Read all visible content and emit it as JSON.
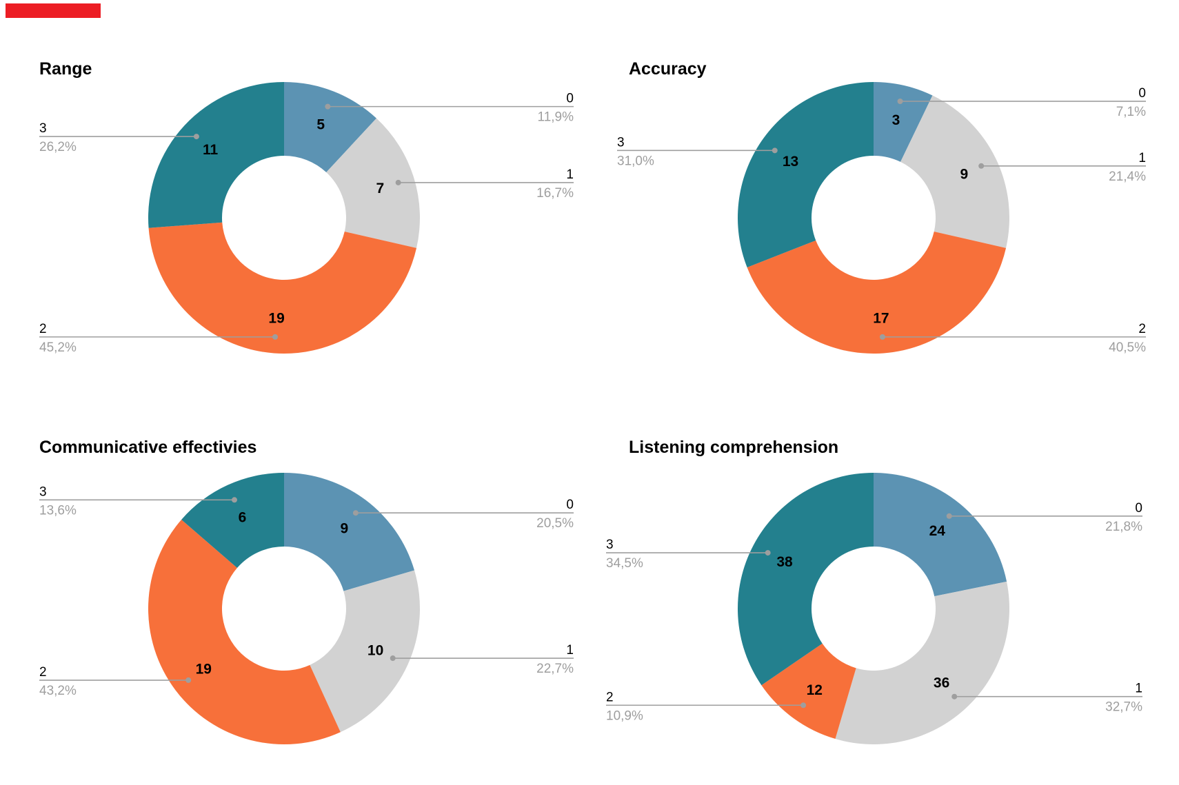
{
  "page": {
    "background": "#ffffff",
    "red_marker_color": "#ec1d24"
  },
  "palette": {
    "slice_colors": [
      "#5C93B3",
      "#D2D2D2",
      "#F7703A",
      "#23808E"
    ],
    "leader_color": "#9E9E9E",
    "percent_text_color": "#9E9E9E",
    "value_text_color": "#000000",
    "category_text_color": "#000000",
    "title_color": "#000000"
  },
  "chart_data": [
    {
      "type": "pie",
      "subtype": "donut",
      "title": "Range",
      "categories": [
        "0",
        "1",
        "2",
        "3"
      ],
      "values": [
        5,
        7,
        19,
        11
      ],
      "percent_labels": [
        "11,9%",
        "16,7%",
        "45,2%",
        "26,2%"
      ],
      "legend_position": "callout-labels",
      "start_angle_deg": 0,
      "direction": "clockwise"
    },
    {
      "type": "pie",
      "subtype": "donut",
      "title": "Accuracy",
      "categories": [
        "0",
        "1",
        "2",
        "3"
      ],
      "values": [
        3,
        9,
        17,
        13
      ],
      "percent_labels": [
        "7,1%",
        "21,4%",
        "40,5%",
        "31,0%"
      ],
      "legend_position": "callout-labels",
      "start_angle_deg": 0,
      "direction": "clockwise"
    },
    {
      "type": "pie",
      "subtype": "donut",
      "title": "Communicative effectivies",
      "categories": [
        "0",
        "1",
        "2",
        "3"
      ],
      "values": [
        9,
        10,
        19,
        6
      ],
      "percent_labels": [
        "20,5%",
        "22,7%",
        "43,2%",
        "13,6%"
      ],
      "legend_position": "callout-labels",
      "start_angle_deg": 0,
      "direction": "clockwise"
    },
    {
      "type": "pie",
      "subtype": "donut",
      "title": "Listening comprehension",
      "categories": [
        "0",
        "1",
        "2",
        "3"
      ],
      "values": [
        24,
        36,
        12,
        38
      ],
      "percent_labels": [
        "21,8%",
        "32,7%",
        "10,9%",
        "34,5%"
      ],
      "legend_position": "callout-labels",
      "start_angle_deg": 0,
      "direction": "clockwise"
    }
  ]
}
